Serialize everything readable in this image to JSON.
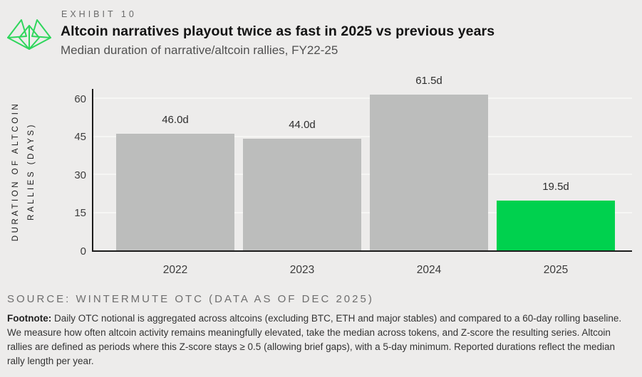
{
  "header": {
    "exhibit_label": "EXHIBIT 10",
    "title": "Altcoin narratives playout twice as fast in 2025 vs previous years",
    "subtitle": "Median duration of narrative/altcoin rallies, FY22-25",
    "logo_icon": "wintermute-logo"
  },
  "chart_data": {
    "type": "bar",
    "categories": [
      "2022",
      "2023",
      "2024",
      "2025"
    ],
    "values": [
      46.0,
      44.0,
      61.5,
      19.5
    ],
    "value_labels": [
      "46.0d",
      "44.0d",
      "61.5d",
      "19.5d"
    ],
    "bar_colors": [
      "#bcbdbc",
      "#bcbdbc",
      "#bcbdbc",
      "#00d14e"
    ],
    "ylabel_line1": "DURATION OF ALTCOIN",
    "ylabel_line2": "RALLIES (DAYS)",
    "yticks": [
      0,
      15,
      30,
      45,
      60
    ],
    "ylim": [
      0,
      64
    ],
    "grid": true,
    "legend": "none",
    "colors": {
      "background": "#edeceb",
      "bar_gray": "#bcbdbc",
      "bar_green": "#00d14e",
      "axis": "#1c1c1c",
      "gridline": "#f6f6f4",
      "logo_green": "#2fd65c"
    }
  },
  "footer": {
    "source": "SOURCE: WINTERMUTE OTC (DATA AS OF DEC 2025)",
    "footnote_label": "Footnote:",
    "footnote_text": " Daily OTC notional is aggregated across altcoins (excluding BTC, ETH and major stables) and compared to a 60-day rolling baseline. We measure how often altcoin activity remains meaningfully elevated, take the median across tokens, and Z-score the resulting series. Altcoin rallies are defined as periods where this Z-score stays ≥ 0.5 (allowing brief gaps), with a 5-day minimum. Reported durations reflect the median rally length per year."
  }
}
